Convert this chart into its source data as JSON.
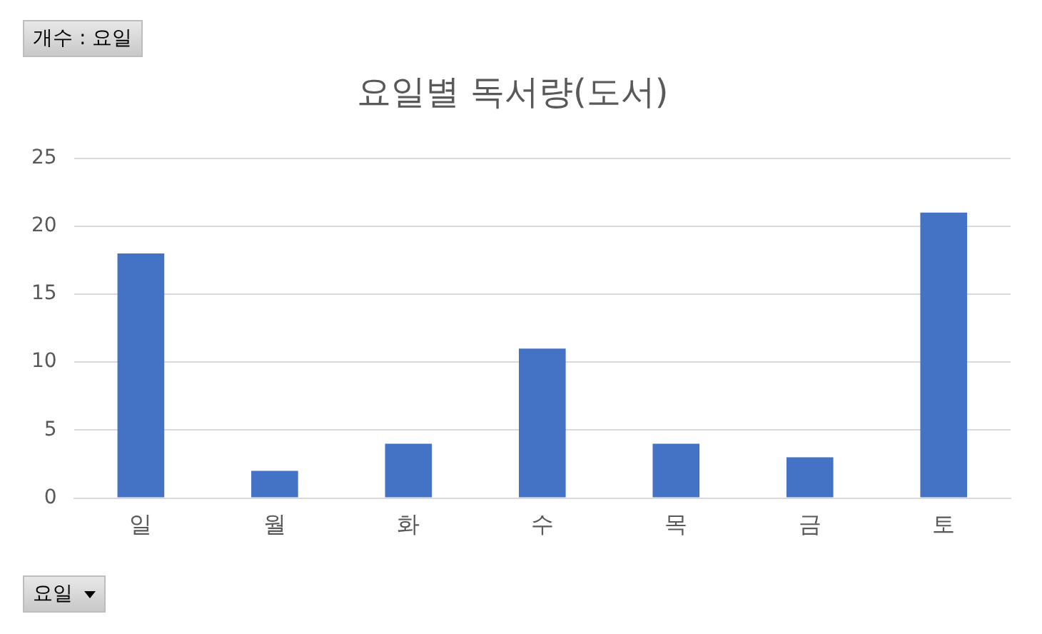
{
  "chart_data": {
    "type": "bar",
    "title": "요일별 독서량(도서)",
    "categories": [
      "일",
      "월",
      "화",
      "수",
      "목",
      "금",
      "토"
    ],
    "values": [
      18,
      2,
      4,
      11,
      4,
      3,
      21
    ],
    "color": "#4472c4",
    "ylim": [
      0,
      25
    ],
    "yticks": [
      0,
      5,
      10,
      15,
      20,
      25
    ],
    "grid": "y",
    "legend": false,
    "annotations": [
      "개수 : 요일",
      "요일"
    ]
  }
}
